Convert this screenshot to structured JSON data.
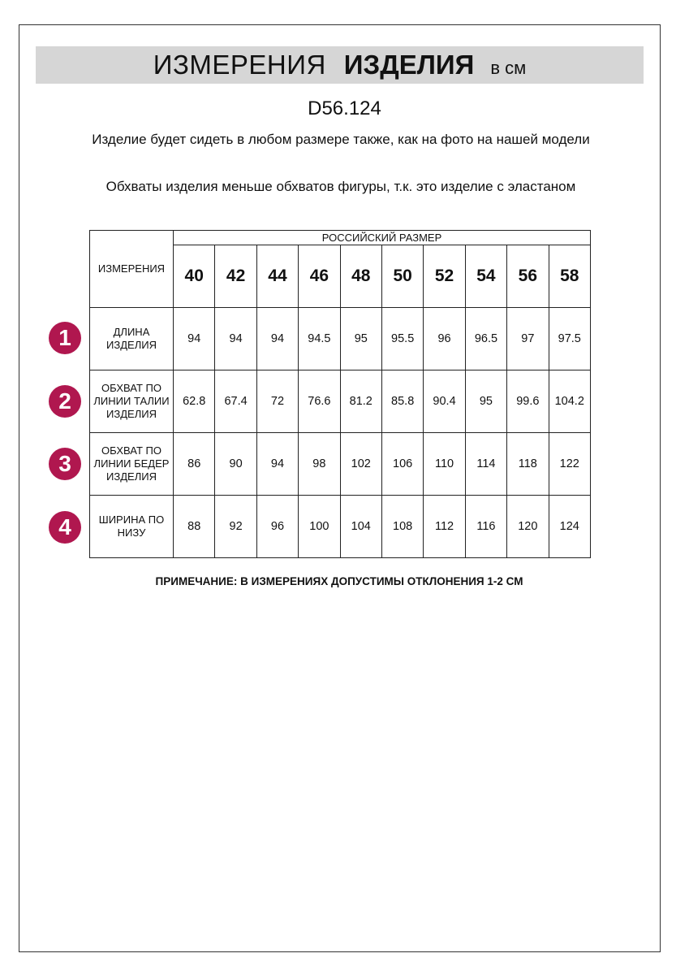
{
  "title": {
    "part1": "ИЗМЕРЕНИЯ",
    "part2": "ИЗДЕЛИЯ",
    "unit": "в см"
  },
  "product_code": "D56.124",
  "notes": [
    "Изделие будет сидеть в любом размере также, как на фото на нашей модели",
    "Обхваты изделия меньше обхватов фигуры, т.к. это изделие с эластаном"
  ],
  "table": {
    "measure_header": "ИЗМЕРЕНИЯ",
    "size_group_header": "РОССИЙСКИЙ РАЗМЕР",
    "sizes": [
      "40",
      "42",
      "44",
      "46",
      "48",
      "50",
      "52",
      "54",
      "56",
      "58"
    ],
    "rows": [
      {
        "badge": "1",
        "label": "ДЛИНА ИЗДЕЛИЯ",
        "values": [
          "94",
          "94",
          "94",
          "94.5",
          "95",
          "95.5",
          "96",
          "96.5",
          "97",
          "97.5"
        ]
      },
      {
        "badge": "2",
        "label": "ОБХВАТ ПО ЛИНИИ ТАЛИИ ИЗДЕЛИЯ",
        "values": [
          "62.8",
          "67.4",
          "72",
          "76.6",
          "81.2",
          "85.8",
          "90.4",
          "95",
          "99.6",
          "104.2"
        ]
      },
      {
        "badge": "3",
        "label": "ОБХВАТ ПО ЛИНИИ БЕДЕР ИЗДЕЛИЯ",
        "values": [
          "86",
          "90",
          "94",
          "98",
          "102",
          "106",
          "110",
          "114",
          "118",
          "122"
        ]
      },
      {
        "badge": "4",
        "label": "ШИРИНА ПО НИЗУ",
        "values": [
          "88",
          "92",
          "96",
          "100",
          "104",
          "108",
          "112",
          "116",
          "120",
          "124"
        ]
      }
    ]
  },
  "footer": "ПРИМЕЧАНИЕ: В ИЗМЕРЕНИЯХ ДОПУСТИМЫ ОТКЛОНЕНИЯ 1-2 СМ",
  "colors": {
    "badge": "#b0174f",
    "title_bar": "#d6d6d6"
  }
}
